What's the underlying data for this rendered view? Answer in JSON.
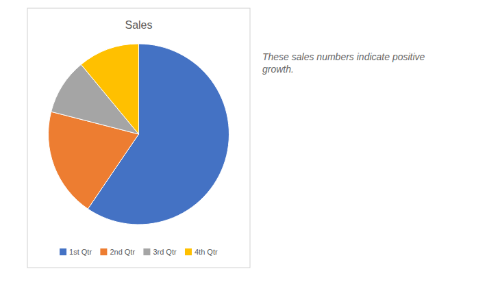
{
  "chart_data": {
    "type": "pie",
    "title": "Sales",
    "categories": [
      "1st Qtr",
      "2nd Qtr",
      "3rd Qtr",
      "4th Qtr"
    ],
    "values": [
      0.595,
      0.195,
      0.1,
      0.11
    ],
    "colors": [
      "#4472C4",
      "#ED7D31",
      "#A5A5A5",
      "#FFC000"
    ],
    "legend": "bottom",
    "annotation": "These sales numbers indicate positive\ngrowth."
  }
}
